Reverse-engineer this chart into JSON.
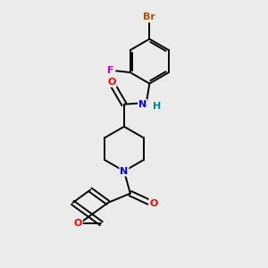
{
  "background_color": "#ebebeb",
  "bond_color": "#000000",
  "atom_colors": {
    "Br": "#b05000",
    "F": "#cc00cc",
    "O": "#ff0000",
    "N": "#0000ff",
    "H": "#008888",
    "C": "#000000"
  },
  "lw": 1.4,
  "fontsize": 8
}
